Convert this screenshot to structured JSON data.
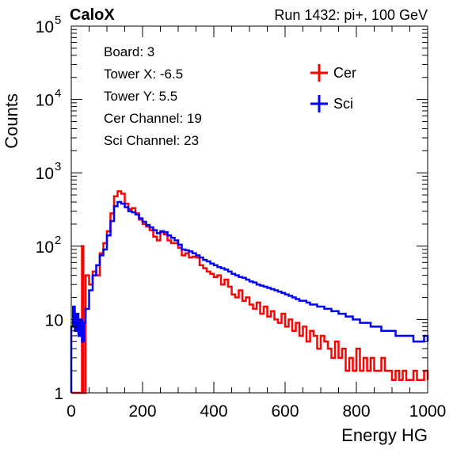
{
  "header": {
    "left": "CaloX",
    "right": "Run 1432: pi+, 100 GeV"
  },
  "info_box": [
    "Board: 3",
    "Tower X: -6.5",
    "Tower Y: 5.5",
    "Cer Channel: 19",
    "Sci Channel: 23"
  ],
  "chart_data": {
    "type": "line",
    "style": "step-histogram",
    "xlabel": "Energy HG",
    "ylabel": "Counts",
    "xlim": [
      0,
      1000
    ],
    "ylim": [
      1,
      100000
    ],
    "yscale": "log",
    "grid": false,
    "legend_position": "top-right",
    "x_ticks": [
      {
        "value": 0,
        "label": "0"
      },
      {
        "value": 200,
        "label": "200"
      },
      {
        "value": 400,
        "label": "400"
      },
      {
        "value": 600,
        "label": "600"
      },
      {
        "value": 800,
        "label": "800"
      },
      {
        "value": 1000,
        "label": "1000"
      }
    ],
    "y_ticks": [
      {
        "value": 1,
        "label": "1"
      },
      {
        "value": 10,
        "label": "10"
      },
      {
        "value": 100,
        "label": "10",
        "exp": "2"
      },
      {
        "value": 1000,
        "label": "10",
        "exp": "3"
      },
      {
        "value": 10000,
        "label": "10",
        "exp": "4"
      },
      {
        "value": 100000,
        "label": "10",
        "exp": "5"
      }
    ],
    "series": [
      {
        "name": "Cer",
        "color": "#ff0000",
        "points": [
          [
            0,
            1
          ],
          [
            25,
            1
          ],
          [
            30,
            100
          ],
          [
            34,
            1
          ],
          [
            40,
            40
          ],
          [
            50,
            30
          ],
          [
            60,
            45
          ],
          [
            70,
            40
          ],
          [
            80,
            80
          ],
          [
            90,
            110
          ],
          [
            100,
            160
          ],
          [
            110,
            280
          ],
          [
            120,
            480
          ],
          [
            130,
            560
          ],
          [
            140,
            520
          ],
          [
            150,
            380
          ],
          [
            160,
            320
          ],
          [
            170,
            330
          ],
          [
            180,
            280
          ],
          [
            190,
            230
          ],
          [
            200,
            200
          ],
          [
            210,
            185
          ],
          [
            220,
            165
          ],
          [
            230,
            135
          ],
          [
            240,
            120
          ],
          [
            250,
            155
          ],
          [
            260,
            145
          ],
          [
            270,
            120
          ],
          [
            280,
            110
          ],
          [
            290,
            110
          ],
          [
            300,
            95
          ],
          [
            310,
            75
          ],
          [
            320,
            80
          ],
          [
            330,
            70
          ],
          [
            340,
            72
          ],
          [
            350,
            70
          ],
          [
            360,
            55
          ],
          [
            370,
            50
          ],
          [
            380,
            45
          ],
          [
            390,
            42
          ],
          [
            400,
            38
          ],
          [
            410,
            40
          ],
          [
            420,
            30
          ],
          [
            430,
            35
          ],
          [
            440,
            28
          ],
          [
            450,
            22
          ],
          [
            460,
            20
          ],
          [
            470,
            25
          ],
          [
            480,
            18
          ],
          [
            490,
            20
          ],
          [
            500,
            16
          ],
          [
            510,
            14
          ],
          [
            520,
            17
          ],
          [
            530,
            12
          ],
          [
            540,
            15
          ],
          [
            550,
            11
          ],
          [
            560,
            13
          ],
          [
            570,
            10
          ],
          [
            580,
            9
          ],
          [
            590,
            12
          ],
          [
            600,
            8
          ],
          [
            610,
            10
          ],
          [
            620,
            7
          ],
          [
            630,
            9
          ],
          [
            640,
            6
          ],
          [
            650,
            8
          ],
          [
            660,
            5
          ],
          [
            670,
            7
          ],
          [
            680,
            6
          ],
          [
            690,
            4
          ],
          [
            700,
            6
          ],
          [
            710,
            5
          ],
          [
            720,
            4
          ],
          [
            730,
            3
          ],
          [
            740,
            5
          ],
          [
            750,
            3
          ],
          [
            760,
            4
          ],
          [
            770,
            2
          ],
          [
            780,
            3
          ],
          [
            790,
            2
          ],
          [
            800,
            4
          ],
          [
            810,
            2
          ],
          [
            820,
            3
          ],
          [
            830,
            2
          ],
          [
            840,
            3
          ],
          [
            850,
            2
          ],
          [
            860,
            2
          ],
          [
            870,
            3
          ],
          [
            880,
            2
          ],
          [
            890,
            2
          ],
          [
            900,
            1.5
          ],
          [
            910,
            2
          ],
          [
            920,
            1.5
          ],
          [
            930,
            2
          ],
          [
            940,
            1.5
          ],
          [
            950,
            1.5
          ],
          [
            960,
            2
          ],
          [
            970,
            1.5
          ],
          [
            980,
            1.5
          ],
          [
            990,
            2
          ],
          [
            1000,
            1.5
          ]
        ]
      },
      {
        "name": "Sci",
        "color": "#0000ff",
        "points": [
          [
            0,
            8
          ],
          [
            5,
            15
          ],
          [
            10,
            7
          ],
          [
            15,
            12
          ],
          [
            20,
            6
          ],
          [
            25,
            10
          ],
          [
            30,
            5
          ],
          [
            35,
            9
          ],
          [
            40,
            14
          ],
          [
            50,
            25
          ],
          [
            60,
            40
          ],
          [
            70,
            55
          ],
          [
            80,
            75
          ],
          [
            90,
            90
          ],
          [
            100,
            140
          ],
          [
            110,
            220
          ],
          [
            120,
            350
          ],
          [
            130,
            400
          ],
          [
            140,
            380
          ],
          [
            150,
            340
          ],
          [
            160,
            300
          ],
          [
            170,
            290
          ],
          [
            180,
            270
          ],
          [
            190,
            240
          ],
          [
            200,
            215
          ],
          [
            210,
            195
          ],
          [
            220,
            180
          ],
          [
            230,
            165
          ],
          [
            240,
            150
          ],
          [
            250,
            160
          ],
          [
            260,
            155
          ],
          [
            270,
            140
          ],
          [
            280,
            130
          ],
          [
            290,
            120
          ],
          [
            300,
            105
          ],
          [
            310,
            90
          ],
          [
            320,
            88
          ],
          [
            330,
            85
          ],
          [
            340,
            80
          ],
          [
            350,
            75
          ],
          [
            360,
            70
          ],
          [
            370,
            65
          ],
          [
            380,
            62
          ],
          [
            390,
            58
          ],
          [
            400,
            55
          ],
          [
            410,
            52
          ],
          [
            420,
            50
          ],
          [
            430,
            48
          ],
          [
            440,
            45
          ],
          [
            450,
            42
          ],
          [
            460,
            40
          ],
          [
            470,
            38
          ],
          [
            480,
            37
          ],
          [
            490,
            35
          ],
          [
            500,
            33
          ],
          [
            510,
            32
          ],
          [
            520,
            30
          ],
          [
            530,
            29
          ],
          [
            540,
            28
          ],
          [
            550,
            27
          ],
          [
            560,
            26
          ],
          [
            570,
            25
          ],
          [
            580,
            24
          ],
          [
            590,
            23
          ],
          [
            600,
            22
          ],
          [
            610,
            21
          ],
          [
            620,
            20
          ],
          [
            630,
            19
          ],
          [
            640,
            18
          ],
          [
            650,
            18
          ],
          [
            660,
            17
          ],
          [
            670,
            16
          ],
          [
            680,
            16
          ],
          [
            690,
            15
          ],
          [
            700,
            15
          ],
          [
            710,
            14
          ],
          [
            720,
            14
          ],
          [
            730,
            13
          ],
          [
            740,
            13
          ],
          [
            750,
            12
          ],
          [
            760,
            12
          ],
          [
            770,
            11
          ],
          [
            780,
            11
          ],
          [
            790,
            10
          ],
          [
            800,
            10
          ],
          [
            810,
            9
          ],
          [
            820,
            9
          ],
          [
            830,
            9
          ],
          [
            840,
            8
          ],
          [
            850,
            8
          ],
          [
            860,
            8
          ],
          [
            870,
            7
          ],
          [
            880,
            7
          ],
          [
            890,
            7
          ],
          [
            900,
            7
          ],
          [
            910,
            6
          ],
          [
            920,
            6
          ],
          [
            930,
            6
          ],
          [
            940,
            6
          ],
          [
            950,
            6
          ],
          [
            960,
            5
          ],
          [
            970,
            5
          ],
          [
            980,
            5
          ],
          [
            990,
            6
          ],
          [
            1000,
            5
          ]
        ]
      }
    ]
  }
}
